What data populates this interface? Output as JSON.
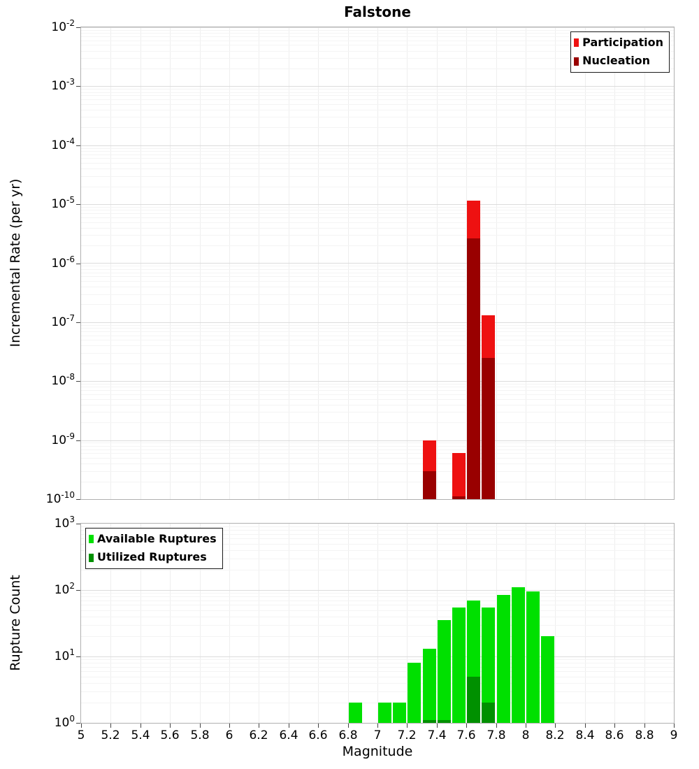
{
  "title": "Falstone",
  "xlabel": "Magnitude",
  "x_ticks": {
    "values": [
      5,
      5.2,
      5.4,
      5.6,
      5.8,
      6,
      6.2,
      6.4,
      6.6,
      6.8,
      7,
      7.2,
      7.4,
      7.6,
      7.8,
      8,
      8.2,
      8.4,
      8.6,
      8.8,
      9
    ],
    "labels": [
      "5",
      "5.2",
      "5.4",
      "5.6",
      "5.8",
      "6",
      "6.2",
      "6.4",
      "6.6",
      "6.8",
      "7",
      "7.2",
      "7.4",
      "7.6",
      "7.8",
      "8",
      "8.2",
      "8.4",
      "8.6",
      "8.8",
      "9"
    ]
  },
  "chart_data": [
    {
      "type": "bar",
      "panel": "incremental-rate",
      "ylabel": "Incremental Rate (per yr)",
      "yscale": "log",
      "xlim": [
        5,
        9
      ],
      "ylim": [
        1e-10,
        0.01
      ],
      "y_tick_exponents": [
        -2,
        -3,
        -4,
        -5,
        -6,
        -7,
        -8,
        -9,
        -10
      ],
      "bin_width": 0.1,
      "categories": [
        7.35,
        7.55,
        7.65,
        7.75
      ],
      "series": [
        {
          "name": "Participation",
          "color": "#ee1111",
          "values": [
            1e-09,
            6e-10,
            1.15e-05,
            1.3e-07
          ]
        },
        {
          "name": "Nucleation",
          "color": "#990000",
          "values": [
            3e-10,
            1.1e-10,
            2.6e-06,
            2.5e-08
          ]
        }
      ],
      "legend_position": "top-right",
      "grid": true
    },
    {
      "type": "bar",
      "panel": "rupture-count",
      "ylabel": "Rupture Count",
      "yscale": "log",
      "xlim": [
        5,
        9
      ],
      "ylim": [
        1,
        1000
      ],
      "y_tick_exponents": [
        3,
        2,
        1,
        0
      ],
      "bin_width": 0.1,
      "categories": [
        6.85,
        7.05,
        7.15,
        7.25,
        7.35,
        7.45,
        7.55,
        7.65,
        7.75,
        7.85,
        7.95,
        8.05,
        8.15
      ],
      "series": [
        {
          "name": "Available Ruptures",
          "color": "#00e000",
          "values": [
            2,
            2,
            2,
            8,
            13,
            35,
            55,
            70,
            55,
            85,
            110,
            95,
            20
          ]
        },
        {
          "name": "Utilized Ruptures",
          "color": "#009000",
          "values": [
            0,
            0,
            0,
            0,
            1,
            1,
            0,
            5,
            2,
            0,
            0,
            0,
            0
          ]
        }
      ],
      "legend_position": "top-left",
      "grid": true
    }
  ]
}
